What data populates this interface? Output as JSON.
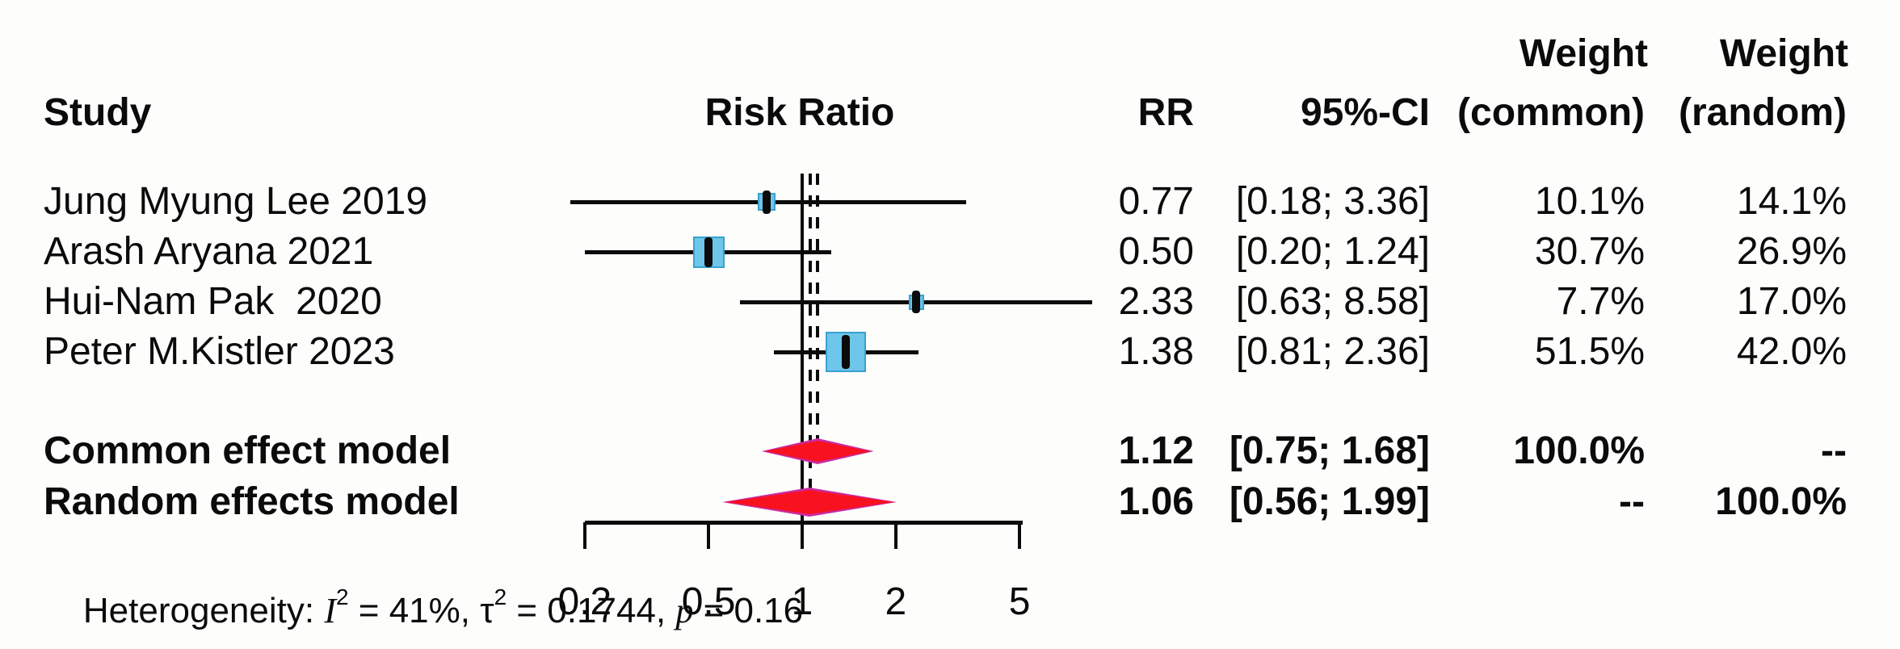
{
  "header": {
    "study": "Study",
    "risk_ratio": "Risk Ratio",
    "rr": "RR",
    "ci": "95%-CI",
    "weight_top_common": "Weight",
    "weight_top_random": "Weight",
    "weight_common": "(common)",
    "weight_random": "(random)"
  },
  "studies": [
    {
      "name": "Jung Myung Lee 2019",
      "rr_text": "0.77",
      "ci_text": "[0.18; 3.36]",
      "w_common": "10.1%",
      "w_random": "14.1%"
    },
    {
      "name": "Arash Aryana 2021",
      "rr_text": "0.50",
      "ci_text": "[0.20; 1.24]",
      "w_common": "30.7%",
      "w_random": "26.9%"
    },
    {
      "name": "Hui-Nam Pak  2020",
      "rr_text": "2.33",
      "ci_text": "[0.63; 8.58]",
      "w_common": "7.7%",
      "w_random": "17.0%"
    },
    {
      "name": "Peter M.Kistler 2023",
      "rr_text": "1.38",
      "ci_text": "[0.81; 2.36]",
      "w_common": "51.5%",
      "w_random": "42.0%"
    }
  ],
  "summaries": [
    {
      "name": "Common effect model",
      "rr_text": "1.12",
      "ci_text": "[0.75; 1.68]",
      "w_common": "100.0%",
      "w_random": "--"
    },
    {
      "name": "Random effects model",
      "rr_text": "1.06",
      "ci_text": "[0.56; 1.99]",
      "w_common": "--",
      "w_random": "100.0%"
    }
  ],
  "heterogeneity": {
    "p1": "Heterogeneity: ",
    "i_sym": "I",
    "sup2a": "2",
    "p2": " = 41%, ",
    "tau_sym": "τ",
    "sup2b": "2",
    "p3": " = 0.1744, ",
    "p_sym": "p",
    "p4": " = 0.16"
  },
  "colors": {
    "text": "#0b0b0b",
    "square_fill": "#6ec6ea",
    "square_border": "#38a2cf",
    "diamond_fill": "#f8111f",
    "diamond_edge": "#cb2aa2",
    "background": "#fdfdfc"
  },
  "chart_data": {
    "type": "forest",
    "x_scale": "log",
    "x_ticks": [
      "0.2",
      "0.5",
      "1",
      "2",
      "5"
    ],
    "x_tick_values": [
      0.2,
      0.5,
      1,
      2,
      5
    ],
    "ref_line": 1,
    "effect_measure": "Risk Ratio",
    "studies": [
      {
        "name": "Jung Myung Lee 2019",
        "rr": 0.77,
        "ci_low": 0.18,
        "ci_high": 3.36,
        "weight_common_pct": 10.1,
        "weight_random_pct": 14.1
      },
      {
        "name": "Arash Aryana 2021",
        "rr": 0.5,
        "ci_low": 0.2,
        "ci_high": 1.24,
        "weight_common_pct": 30.7,
        "weight_random_pct": 26.9
      },
      {
        "name": "Hui-Nam Pak  2020",
        "rr": 2.33,
        "ci_low": 0.63,
        "ci_high": 8.58,
        "weight_common_pct": 7.7,
        "weight_random_pct": 17.0
      },
      {
        "name": "Peter M.Kistler 2023",
        "rr": 1.38,
        "ci_low": 0.81,
        "ci_high": 2.36,
        "weight_common_pct": 51.5,
        "weight_random_pct": 42.0
      }
    ],
    "overall": [
      {
        "model": "common",
        "rr": 1.12,
        "ci_low": 0.75,
        "ci_high": 1.68,
        "weight_common_pct": 100.0
      },
      {
        "model": "random",
        "rr": 1.06,
        "ci_low": 0.56,
        "ci_high": 1.99,
        "weight_random_pct": 100.0
      }
    ],
    "heterogeneity": {
      "I2": "41%",
      "tau2": 0.1744,
      "p": 0.16
    }
  }
}
